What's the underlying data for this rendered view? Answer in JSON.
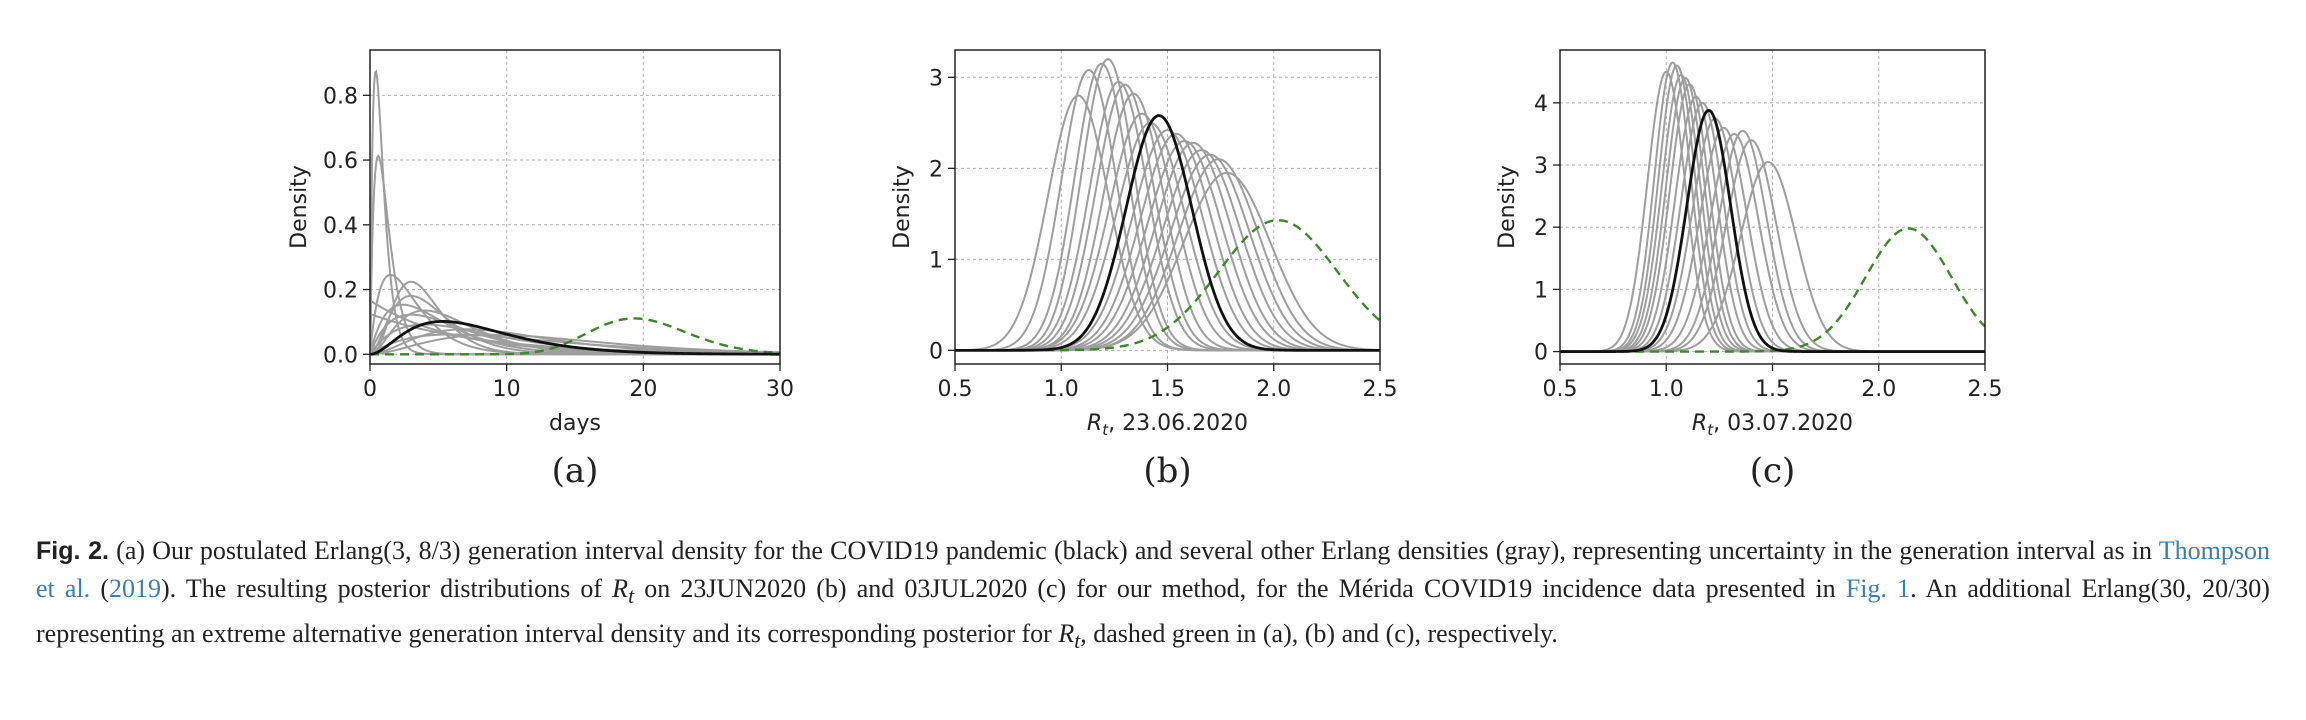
{
  "chart_data": [
    {
      "type": "line",
      "panel_label": "(a)",
      "title": "",
      "xlabel": "days",
      "ylabel": "Density",
      "xlim": [
        0,
        30
      ],
      "ylim": [
        -0.03,
        0.94
      ],
      "xticks": [
        0,
        10,
        20,
        30
      ],
      "yticks": [
        0.0,
        0.2,
        0.4,
        0.6,
        0.8
      ],
      "ytick_labels": [
        "0.0",
        "0.2",
        "0.4",
        "0.6",
        "0.8"
      ],
      "grid": true,
      "black_curve": {
        "distribution": "erlang",
        "shape": 3,
        "scale": 2.6667
      },
      "gray_curves": [
        {
          "distribution": "erlang",
          "shape": 2,
          "scale": 0.42
        },
        {
          "distribution": "erlang",
          "shape": 2,
          "scale": 0.6
        },
        {
          "distribution": "erlang",
          "shape": 2,
          "scale": 1.5
        },
        {
          "distribution": "erlang",
          "shape": 2,
          "scale": 2.4
        },
        {
          "distribution": "erlang",
          "shape": 3,
          "scale": 1.5
        },
        {
          "distribution": "erlang",
          "shape": 3,
          "scale": 2.0
        },
        {
          "distribution": "erlang",
          "shape": 2,
          "scale": 3.0
        },
        {
          "distribution": "erlang",
          "shape": 4,
          "scale": 1.0
        },
        {
          "distribution": "erlang",
          "shape": 2,
          "scale": 4.0
        },
        {
          "distribution": "erlang",
          "shape": 3,
          "scale": 3.5
        },
        {
          "distribution": "erlang",
          "shape": 1,
          "scale": 6.0
        },
        {
          "distribution": "erlang",
          "shape": 1,
          "scale": 8.0
        },
        {
          "distribution": "erlang",
          "shape": 2,
          "scale": 6.0
        },
        {
          "distribution": "erlang",
          "shape": 3,
          "scale": 4.5
        }
      ],
      "dashed_green_curve": {
        "distribution": "erlang",
        "shape": 30,
        "scale": 0.6667
      }
    },
    {
      "type": "line",
      "panel_label": "(b)",
      "title": "",
      "xlabel": "Rt, 23.06.2020",
      "ylabel": "Density",
      "xlim": [
        0.5,
        2.5
      ],
      "ylim": [
        -0.15,
        3.3
      ],
      "xticks": [
        0.5,
        1.0,
        1.5,
        2.0,
        2.5
      ],
      "xtick_labels": [
        "0.5",
        "1.0",
        "1.5",
        "2.0",
        "2.5"
      ],
      "yticks": [
        0,
        1,
        2,
        3
      ],
      "ytick_labels": [
        "0",
        "1",
        "2",
        "3"
      ],
      "grid": true,
      "black_curve": {
        "peak_x": 1.46,
        "peak_y": 2.58
      },
      "gray_curves": [
        {
          "peak_x": 1.08,
          "peak_y": 2.8
        },
        {
          "peak_x": 1.13,
          "peak_y": 3.08
        },
        {
          "peak_x": 1.19,
          "peak_y": 3.15
        },
        {
          "peak_x": 1.22,
          "peak_y": 3.2
        },
        {
          "peak_x": 1.27,
          "peak_y": 2.95
        },
        {
          "peak_x": 1.3,
          "peak_y": 2.92
        },
        {
          "peak_x": 1.34,
          "peak_y": 2.82
        },
        {
          "peak_x": 1.38,
          "peak_y": 2.6
        },
        {
          "peak_x": 1.42,
          "peak_y": 2.5
        },
        {
          "peak_x": 1.5,
          "peak_y": 2.42
        },
        {
          "peak_x": 1.54,
          "peak_y": 2.38
        },
        {
          "peak_x": 1.58,
          "peak_y": 2.3
        },
        {
          "peak_x": 1.62,
          "peak_y": 2.28
        },
        {
          "peak_x": 1.66,
          "peak_y": 2.2
        },
        {
          "peak_x": 1.7,
          "peak_y": 2.15
        },
        {
          "peak_x": 1.74,
          "peak_y": 2.1
        },
        {
          "peak_x": 1.78,
          "peak_y": 1.95
        }
      ],
      "dashed_green_curve": {
        "peak_x": 2.02,
        "peak_y": 1.43
      }
    },
    {
      "type": "line",
      "panel_label": "(c)",
      "title": "",
      "xlabel": "Rt, 03.07.2020",
      "ylabel": "Density",
      "xlim": [
        0.5,
        2.5
      ],
      "ylim": [
        -0.2,
        4.85
      ],
      "xticks": [
        0.5,
        1.0,
        1.5,
        2.0,
        2.5
      ],
      "xtick_labels": [
        "0.5",
        "1.0",
        "1.5",
        "2.0",
        "2.5"
      ],
      "yticks": [
        0,
        1,
        2,
        3,
        4
      ],
      "ytick_labels": [
        "0",
        "1",
        "2",
        "3",
        "4"
      ],
      "grid": true,
      "black_curve": {
        "peak_x": 1.2,
        "peak_y": 3.88
      },
      "gray_curves": [
        {
          "peak_x": 1.0,
          "peak_y": 4.5
        },
        {
          "peak_x": 1.03,
          "peak_y": 4.65
        },
        {
          "peak_x": 1.05,
          "peak_y": 4.6
        },
        {
          "peak_x": 1.07,
          "peak_y": 4.45
        },
        {
          "peak_x": 1.09,
          "peak_y": 4.4
        },
        {
          "peak_x": 1.11,
          "peak_y": 4.3
        },
        {
          "peak_x": 1.14,
          "peak_y": 4.1
        },
        {
          "peak_x": 1.17,
          "peak_y": 4.0
        },
        {
          "peak_x": 1.23,
          "peak_y": 3.75
        },
        {
          "peak_x": 1.27,
          "peak_y": 3.6
        },
        {
          "peak_x": 1.32,
          "peak_y": 3.5
        },
        {
          "peak_x": 1.36,
          "peak_y": 3.55
        },
        {
          "peak_x": 1.4,
          "peak_y": 3.4
        },
        {
          "peak_x": 1.48,
          "peak_y": 3.05
        }
      ],
      "dashed_green_curve": {
        "peak_x": 2.14,
        "peak_y": 1.98
      }
    }
  ],
  "caption": {
    "fig_label": "Fig. 2.",
    "text_1": "(a) Our postulated Erlang(3, 8/3) generation interval density for the COVID19 pandemic (black) and several other Erlang densities (gray), representing uncertainty in the generation interval as in ",
    "cite_name": "Thompson et al.",
    "cite_open": " (",
    "cite_year": "2019",
    "text_2": "). The resulting posterior distributions of ",
    "symbol": "R",
    "symbol_sub": "t",
    "text_3": " on 23JUN2020 (b) and 03JUL2020 (c) for our method, for the Mérida COVID19 incidence data presented in ",
    "fig_ref": "Fig. 1",
    "text_4": ". An additional Erlang(30, 20/30) representing an extreme alternative generation interval density and its corresponding posterior for ",
    "text_5": ", dashed green in (a), (b) and (c), respectively."
  },
  "colors": {
    "black_curve": "#111111",
    "gray_curves": "#9e9e9e",
    "green_dashed": "#3a8a28",
    "grid": "#b0b0b0",
    "link": "#3a7fb3"
  }
}
